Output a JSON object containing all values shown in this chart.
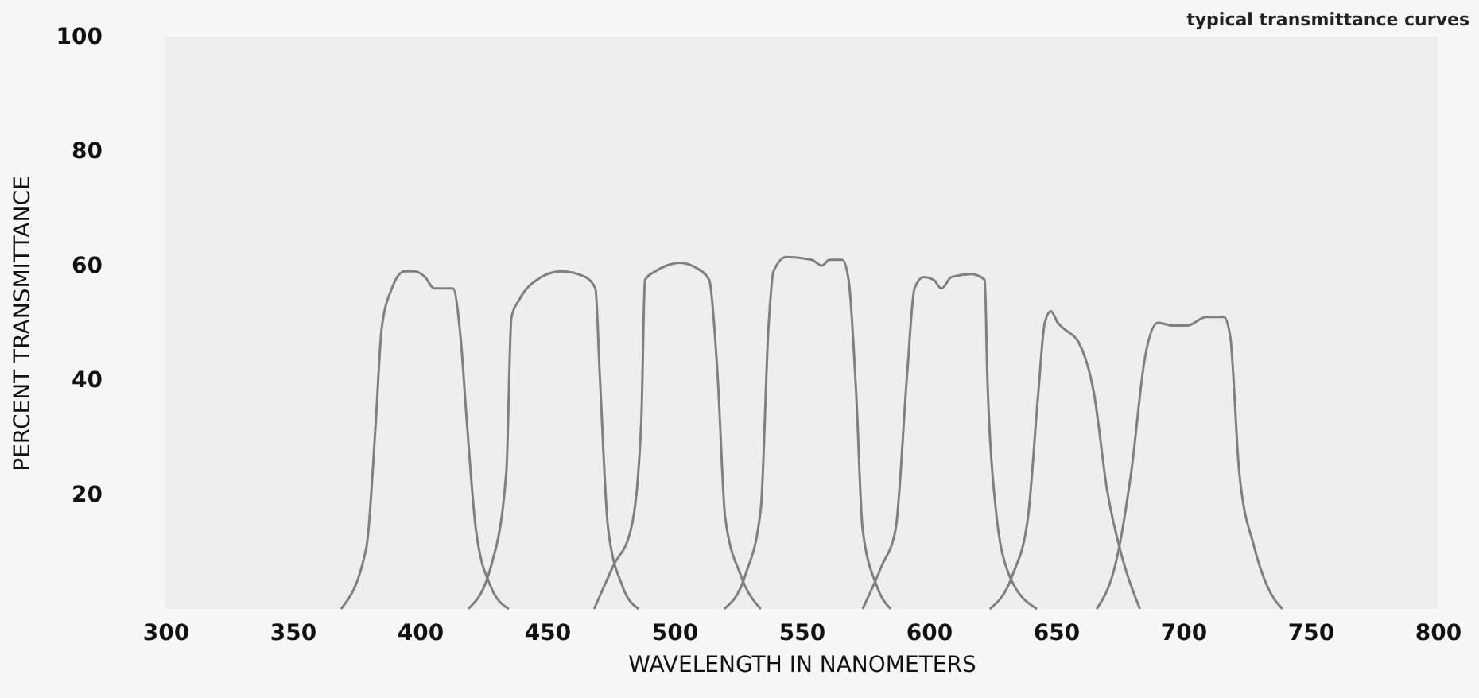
{
  "chart_data": {
    "type": "line",
    "xlabel": "WAVELENGTH  IN  NANOMETERS",
    "ylabel": "PERCENT  TRANSMITTANCE",
    "annotations": [
      "typical transmittance curves"
    ],
    "xlim": [
      300,
      800
    ],
    "xticks": [
      300,
      350,
      400,
      450,
      500,
      550,
      600,
      650,
      700,
      750,
      800
    ],
    "ylim": [
      0,
      100
    ],
    "yticks": [
      20,
      40,
      60,
      80,
      100
    ],
    "grid": false,
    "legend": false,
    "marker": "none",
    "line_style": "solid",
    "series": [
      {
        "color": "#808080",
        "x": [
          369,
          379,
          382.6,
          385,
          389,
          394,
          398,
          402,
          405.6,
          409,
          413,
          416,
          418.5,
          422,
          427.8,
          435
        ],
        "values": [
          0,
          10.8,
          32,
          49,
          56,
          59,
          59,
          58,
          56,
          56,
          56,
          47.5,
          32.5,
          14,
          4,
          0
        ]
      },
      {
        "color": "#808080",
        "x": [
          419,
          428,
          434,
          436,
          439,
          446,
          455.5,
          465,
          469,
          470.7,
          474,
          479.6,
          486
        ],
        "values": [
          0,
          7.5,
          24,
          51,
          54,
          57.5,
          59,
          58,
          56,
          41,
          14,
          4,
          0
        ]
      },
      {
        "color": "#808080",
        "x": [
          468.5,
          476,
          483,
          487,
          488.5,
          492.6,
          497,
          502,
          509,
          513.7,
          517,
          520,
          526,
          534
        ],
        "values": [
          0,
          7.5,
          14,
          32.5,
          57.5,
          59,
          60,
          60.5,
          59.5,
          57.5,
          41,
          16,
          6,
          0
        ]
      },
      {
        "color": "#808080",
        "x": [
          519.6,
          528,
          534,
          537,
          539,
          544,
          554,
          558,
          561,
          566,
          568.5,
          571.5,
          574,
          579.6,
          585
        ],
        "values": [
          0,
          6,
          17.5,
          49,
          59,
          61.5,
          61,
          60,
          61,
          61,
          57.5,
          37.5,
          14,
          4,
          0
        ]
      },
      {
        "color": "#808080",
        "x": [
          574,
          581.5,
          587,
          591.5,
          594.4,
          598,
          601.9,
          605,
          609,
          616.7,
          622,
          623,
          626,
          631.5,
          642.6
        ],
        "values": [
          0,
          7.5,
          14,
          41,
          56,
          58,
          57.5,
          56,
          58,
          58.5,
          57.5,
          41,
          19,
          6,
          0
        ]
      },
      {
        "color": "#808080",
        "x": [
          624,
          633,
          639,
          643,
          645.6,
          648,
          650.7,
          653,
          659,
          665,
          670,
          676,
          683
        ],
        "values": [
          0,
          6,
          16,
          37.5,
          50,
          52,
          50,
          49,
          46.5,
          37.5,
          21,
          9,
          0
        ]
      },
      {
        "color": "#808080",
        "x": [
          666,
          674,
          679.6,
          685,
          690,
          696,
          701.5,
          709,
          716,
          718.5,
          722,
          727.8,
          733,
          739
        ],
        "values": [
          0,
          9,
          24,
          44,
          50,
          49.5,
          49.5,
          51,
          51,
          47.5,
          24,
          11,
          4,
          0
        ]
      }
    ]
  }
}
